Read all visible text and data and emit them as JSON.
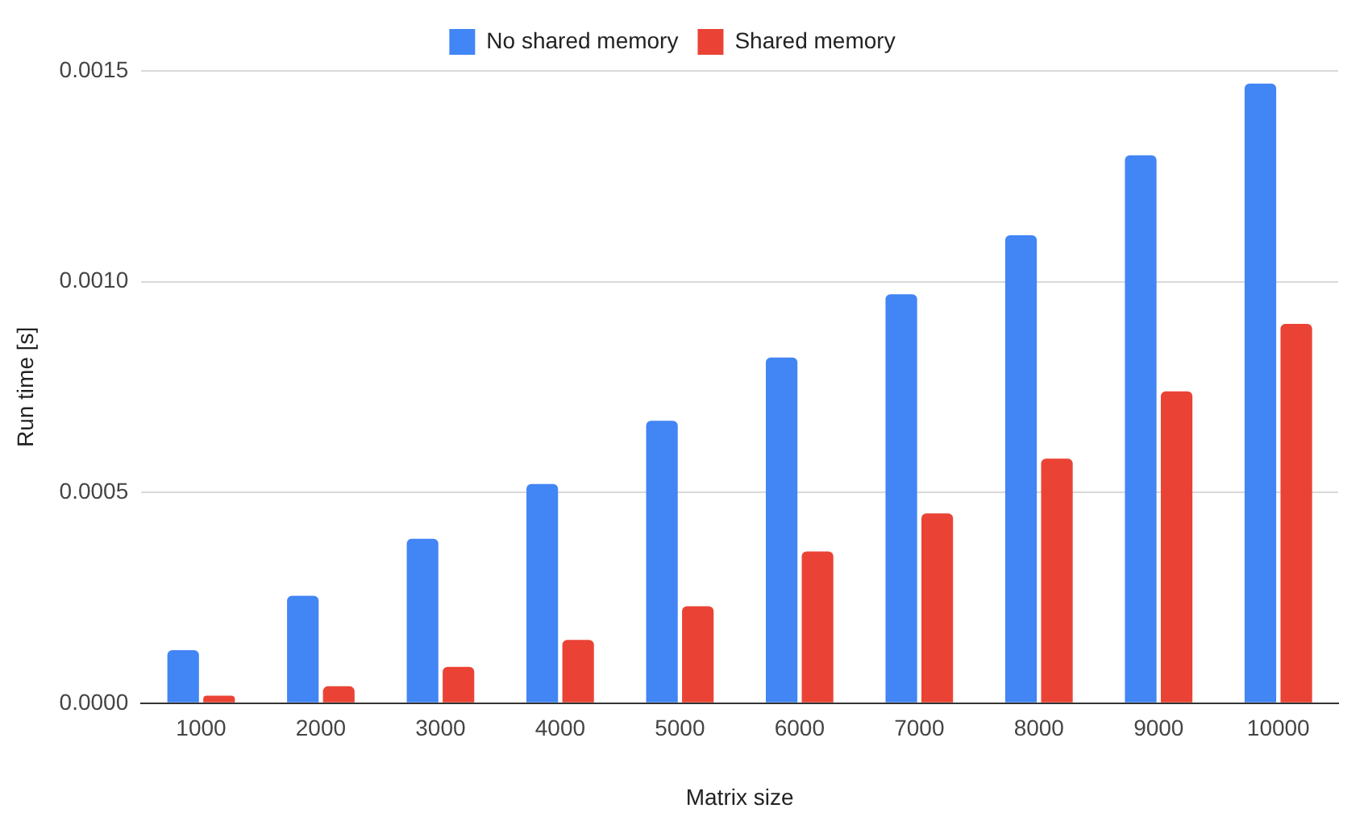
{
  "chart_data": {
    "type": "bar",
    "xlabel": "Matrix size",
    "ylabel": "Run time [s]",
    "categories": [
      "1000",
      "2000",
      "3000",
      "4000",
      "5000",
      "6000",
      "7000",
      "8000",
      "9000",
      "10000"
    ],
    "series": [
      {
        "name": "No shared memory",
        "color": "#4285f4",
        "values": [
          0.000126,
          0.000255,
          0.00039,
          0.00052,
          0.00067,
          0.00082,
          0.00097,
          0.00111,
          0.0013,
          0.00147
        ]
      },
      {
        "name": "Shared memory",
        "color": "#ea4335",
        "values": [
          1.8e-05,
          4e-05,
          8.6e-05,
          0.00015,
          0.00023,
          0.00036,
          0.00045,
          0.00058,
          0.00074,
          0.0009
        ]
      }
    ],
    "ylim": [
      0,
      0.0015
    ],
    "yticks": [
      {
        "value": 0,
        "label": "0.0000"
      },
      {
        "value": 0.0005,
        "label": "0.0005"
      },
      {
        "value": 0.001,
        "label": "0.0010"
      },
      {
        "value": 0.0015,
        "label": "0.0015"
      }
    ],
    "grid": "y",
    "legend": "top"
  }
}
